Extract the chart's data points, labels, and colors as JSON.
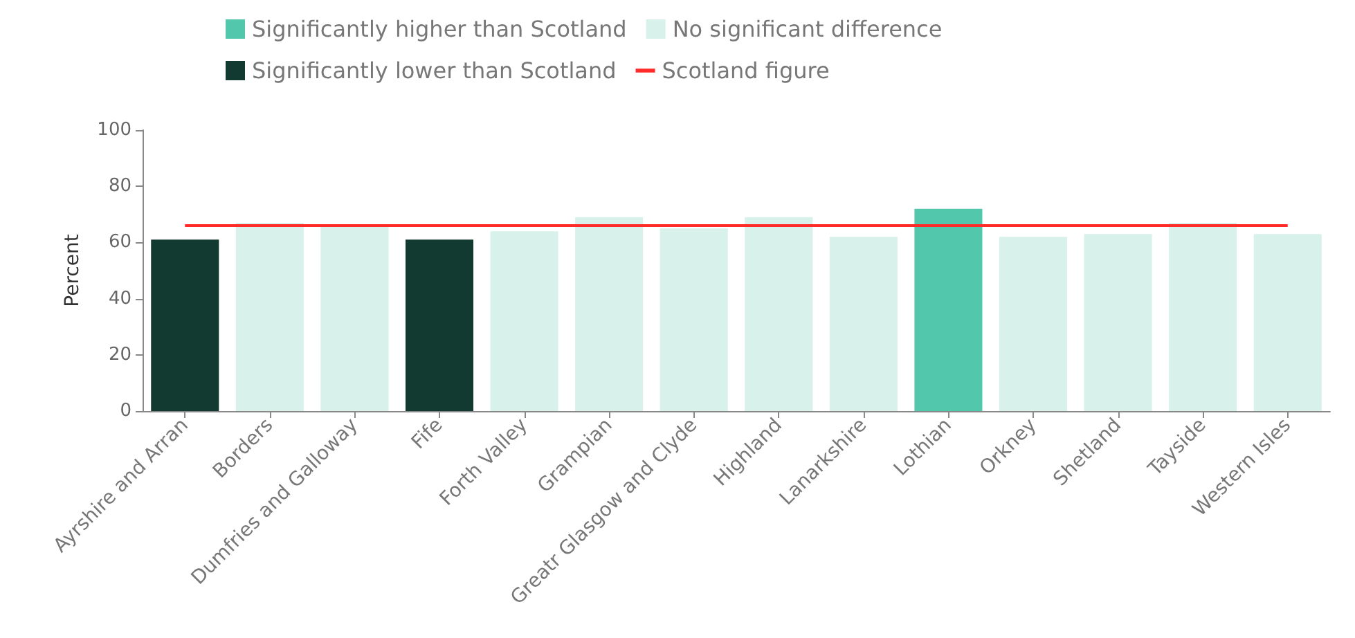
{
  "chart_data": {
    "type": "bar",
    "stacked": true,
    "ylabel": "Percent",
    "categories": [
      "Ayrshire and Arran",
      "Borders",
      "Dumfries and Galloway",
      "Fife",
      "Forth Valley",
      "Grampian",
      "Greatr Glasgow and Clyde",
      "Highland",
      "Lanarkshire",
      "Lothian",
      "Orkney",
      "Shetland",
      "Tayside",
      "Western Isles"
    ],
    "series": [
      {
        "name": "Significantly higher than Scotland",
        "color": "#52c7ab",
        "values": [
          null,
          null,
          null,
          null,
          null,
          null,
          null,
          null,
          null,
          72,
          null,
          null,
          null,
          null
        ]
      },
      {
        "name": "No significant difference",
        "color": "#d8f1eb",
        "values": [
          null,
          67,
          66,
          null,
          64,
          69,
          65,
          69,
          62,
          null,
          62,
          63,
          67,
          63
        ]
      },
      {
        "name": "Significantly lower than Scotland",
        "color": "#133a31",
        "values": [
          61,
          null,
          null,
          61,
          null,
          null,
          null,
          null,
          null,
          null,
          null,
          null,
          null,
          null
        ]
      },
      {
        "name": "Scotland figure",
        "type": "line",
        "color": "#ff2a2a",
        "marker": "none",
        "values": [
          66,
          66,
          66,
          66,
          66,
          66,
          66,
          66,
          66,
          66,
          66,
          66,
          66,
          66
        ]
      }
    ],
    "ylim": [
      0,
      100
    ],
    "yticks": [
      0,
      20,
      40,
      60,
      80,
      100
    ],
    "grid": false,
    "legend": "top left"
  }
}
